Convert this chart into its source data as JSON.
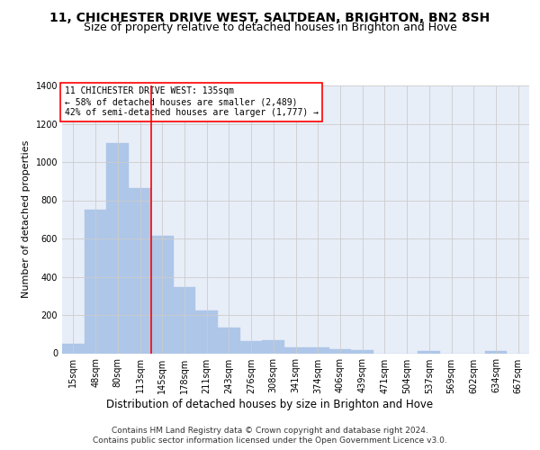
{
  "title1": "11, CHICHESTER DRIVE WEST, SALTDEAN, BRIGHTON, BN2 8SH",
  "title2": "Size of property relative to detached houses in Brighton and Hove",
  "xlabel": "Distribution of detached houses by size in Brighton and Hove",
  "ylabel": "Number of detached properties",
  "footer1": "Contains HM Land Registry data © Crown copyright and database right 2024.",
  "footer2": "Contains public sector information licensed under the Open Government Licence v3.0.",
  "annotation_line1": "11 CHICHESTER DRIVE WEST: 135sqm",
  "annotation_line2": "← 58% of detached houses are smaller (2,489)",
  "annotation_line3": "42% of semi-detached houses are larger (1,777) →",
  "bar_labels": [
    "15sqm",
    "48sqm",
    "80sqm",
    "113sqm",
    "145sqm",
    "178sqm",
    "211sqm",
    "243sqm",
    "276sqm",
    "308sqm",
    "341sqm",
    "374sqm",
    "406sqm",
    "439sqm",
    "471sqm",
    "504sqm",
    "537sqm",
    "569sqm",
    "602sqm",
    "634sqm",
    "667sqm"
  ],
  "bar_values": [
    50,
    750,
    1100,
    865,
    615,
    345,
    225,
    135,
    65,
    70,
    32,
    30,
    22,
    15,
    0,
    0,
    12,
    0,
    0,
    12,
    0
  ],
  "bar_color": "#aec6e8",
  "bar_edgecolor": "#aec6e8",
  "vline_color": "red",
  "vline_x": 3.5,
  "ylim": [
    0,
    1400
  ],
  "yticks": [
    0,
    200,
    400,
    600,
    800,
    1000,
    1200,
    1400
  ],
  "grid_color": "#cccccc",
  "bg_color": "#e8eef8",
  "title1_fontsize": 10,
  "title2_fontsize": 9,
  "ylabel_fontsize": 8,
  "xlabel_fontsize": 8.5,
  "tick_fontsize": 7,
  "annot_fontsize": 7,
  "footer_fontsize": 6.5
}
